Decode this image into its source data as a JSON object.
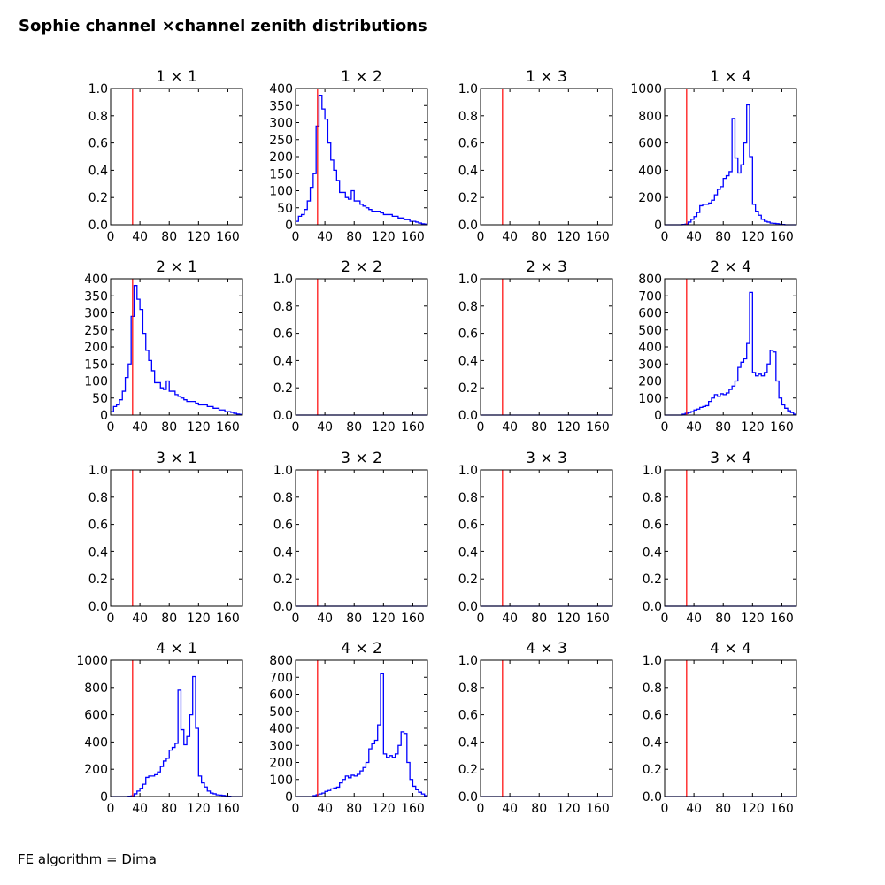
{
  "chart_data": {
    "type": "line",
    "title": "Sophie channel ×channel zenith distributions",
    "footer": "FE algorithm = Dima",
    "xlim": [
      0,
      180
    ],
    "xticks": [
      "0",
      "40",
      "80",
      "120",
      "160"
    ],
    "cut_line_x": 30,
    "colors": {
      "hist": "#0000ff",
      "cut": "#ff0000"
    },
    "bins": {
      "start": 0,
      "width": 4
    },
    "series": {
      "A": [
        10,
        25,
        30,
        45,
        70,
        110,
        150,
        290,
        380,
        340,
        310,
        240,
        190,
        160,
        130,
        95,
        95,
        80,
        75,
        100,
        70,
        70,
        60,
        55,
        50,
        45,
        40,
        40,
        40,
        35,
        30,
        30,
        30,
        25,
        25,
        20,
        20,
        15,
        15,
        10,
        10,
        8,
        5,
        3,
        2
      ],
      "B": [
        0,
        0,
        0,
        0,
        0,
        0,
        2,
        5,
        20,
        40,
        60,
        90,
        140,
        150,
        150,
        160,
        180,
        220,
        260,
        280,
        340,
        360,
        390,
        780,
        490,
        380,
        440,
        600,
        880,
        500,
        150,
        100,
        70,
        40,
        25,
        20,
        12,
        10,
        8,
        5,
        2,
        0,
        0,
        0,
        0
      ],
      "C": [
        0,
        0,
        0,
        0,
        0,
        0,
        5,
        10,
        15,
        20,
        30,
        35,
        45,
        50,
        55,
        80,
        100,
        120,
        110,
        125,
        120,
        130,
        150,
        170,
        200,
        280,
        310,
        330,
        420,
        720,
        250,
        230,
        240,
        230,
        250,
        300,
        380,
        370,
        200,
        100,
        60,
        40,
        25,
        15,
        5
      ]
    },
    "panels": [
      {
        "title": "1 × 1",
        "ylim": [
          0,
          1
        ],
        "yticks": [
          "0.0",
          "0.2",
          "0.4",
          "0.6",
          "0.8",
          "1.0"
        ],
        "series": null
      },
      {
        "title": "1 × 2",
        "ylim": [
          0,
          400
        ],
        "yticks": [
          "0",
          "50",
          "100",
          "150",
          "200",
          "250",
          "300",
          "350",
          "400"
        ],
        "series": "A"
      },
      {
        "title": "1 × 3",
        "ylim": [
          0,
          1
        ],
        "yticks": [
          "0.0",
          "0.2",
          "0.4",
          "0.6",
          "0.8",
          "1.0"
        ],
        "series": null
      },
      {
        "title": "1 × 4",
        "ylim": [
          0,
          1000
        ],
        "yticks": [
          "0",
          "200",
          "400",
          "600",
          "800",
          "1000"
        ],
        "series": "B"
      },
      {
        "title": "2 × 1",
        "ylim": [
          0,
          400
        ],
        "yticks": [
          "0",
          "50",
          "100",
          "150",
          "200",
          "250",
          "300",
          "350",
          "400"
        ],
        "series": "A"
      },
      {
        "title": "2 × 2",
        "ylim": [
          0,
          1
        ],
        "yticks": [
          "0.0",
          "0.2",
          "0.4",
          "0.6",
          "0.8",
          "1.0"
        ],
        "series": "zero"
      },
      {
        "title": "2 × 3",
        "ylim": [
          0,
          1
        ],
        "yticks": [
          "0.0",
          "0.2",
          "0.4",
          "0.6",
          "0.8",
          "1.0"
        ],
        "series": "zero"
      },
      {
        "title": "2 × 4",
        "ylim": [
          0,
          800
        ],
        "yticks": [
          "0",
          "100",
          "200",
          "300",
          "400",
          "500",
          "600",
          "700",
          "800"
        ],
        "series": "C"
      },
      {
        "title": "3 × 1",
        "ylim": [
          0,
          1
        ],
        "yticks": [
          "0.0",
          "0.2",
          "0.4",
          "0.6",
          "0.8",
          "1.0"
        ],
        "series": null
      },
      {
        "title": "3 × 2",
        "ylim": [
          0,
          1
        ],
        "yticks": [
          "0.0",
          "0.2",
          "0.4",
          "0.6",
          "0.8",
          "1.0"
        ],
        "series": "zero"
      },
      {
        "title": "3 × 3",
        "ylim": [
          0,
          1
        ],
        "yticks": [
          "0.0",
          "0.2",
          "0.4",
          "0.6",
          "0.8",
          "1.0"
        ],
        "series": "zero"
      },
      {
        "title": "3 × 4",
        "ylim": [
          0,
          1
        ],
        "yticks": [
          "0.0",
          "0.2",
          "0.4",
          "0.6",
          "0.8",
          "1.0"
        ],
        "series": "zero"
      },
      {
        "title": "4 × 1",
        "ylim": [
          0,
          1000
        ],
        "yticks": [
          "0",
          "200",
          "400",
          "600",
          "800",
          "1000"
        ],
        "series": "B"
      },
      {
        "title": "4 × 2",
        "ylim": [
          0,
          800
        ],
        "yticks": [
          "0",
          "100",
          "200",
          "300",
          "400",
          "500",
          "600",
          "700",
          "800"
        ],
        "series": "C"
      },
      {
        "title": "4 × 3",
        "ylim": [
          0,
          1
        ],
        "yticks": [
          "0.0",
          "0.2",
          "0.4",
          "0.6",
          "0.8",
          "1.0"
        ],
        "series": "zero"
      },
      {
        "title": "4 × 4",
        "ylim": [
          0,
          1
        ],
        "yticks": [
          "0.0",
          "0.2",
          "0.4",
          "0.6",
          "0.8",
          "1.0"
        ],
        "series": "zero"
      }
    ]
  }
}
